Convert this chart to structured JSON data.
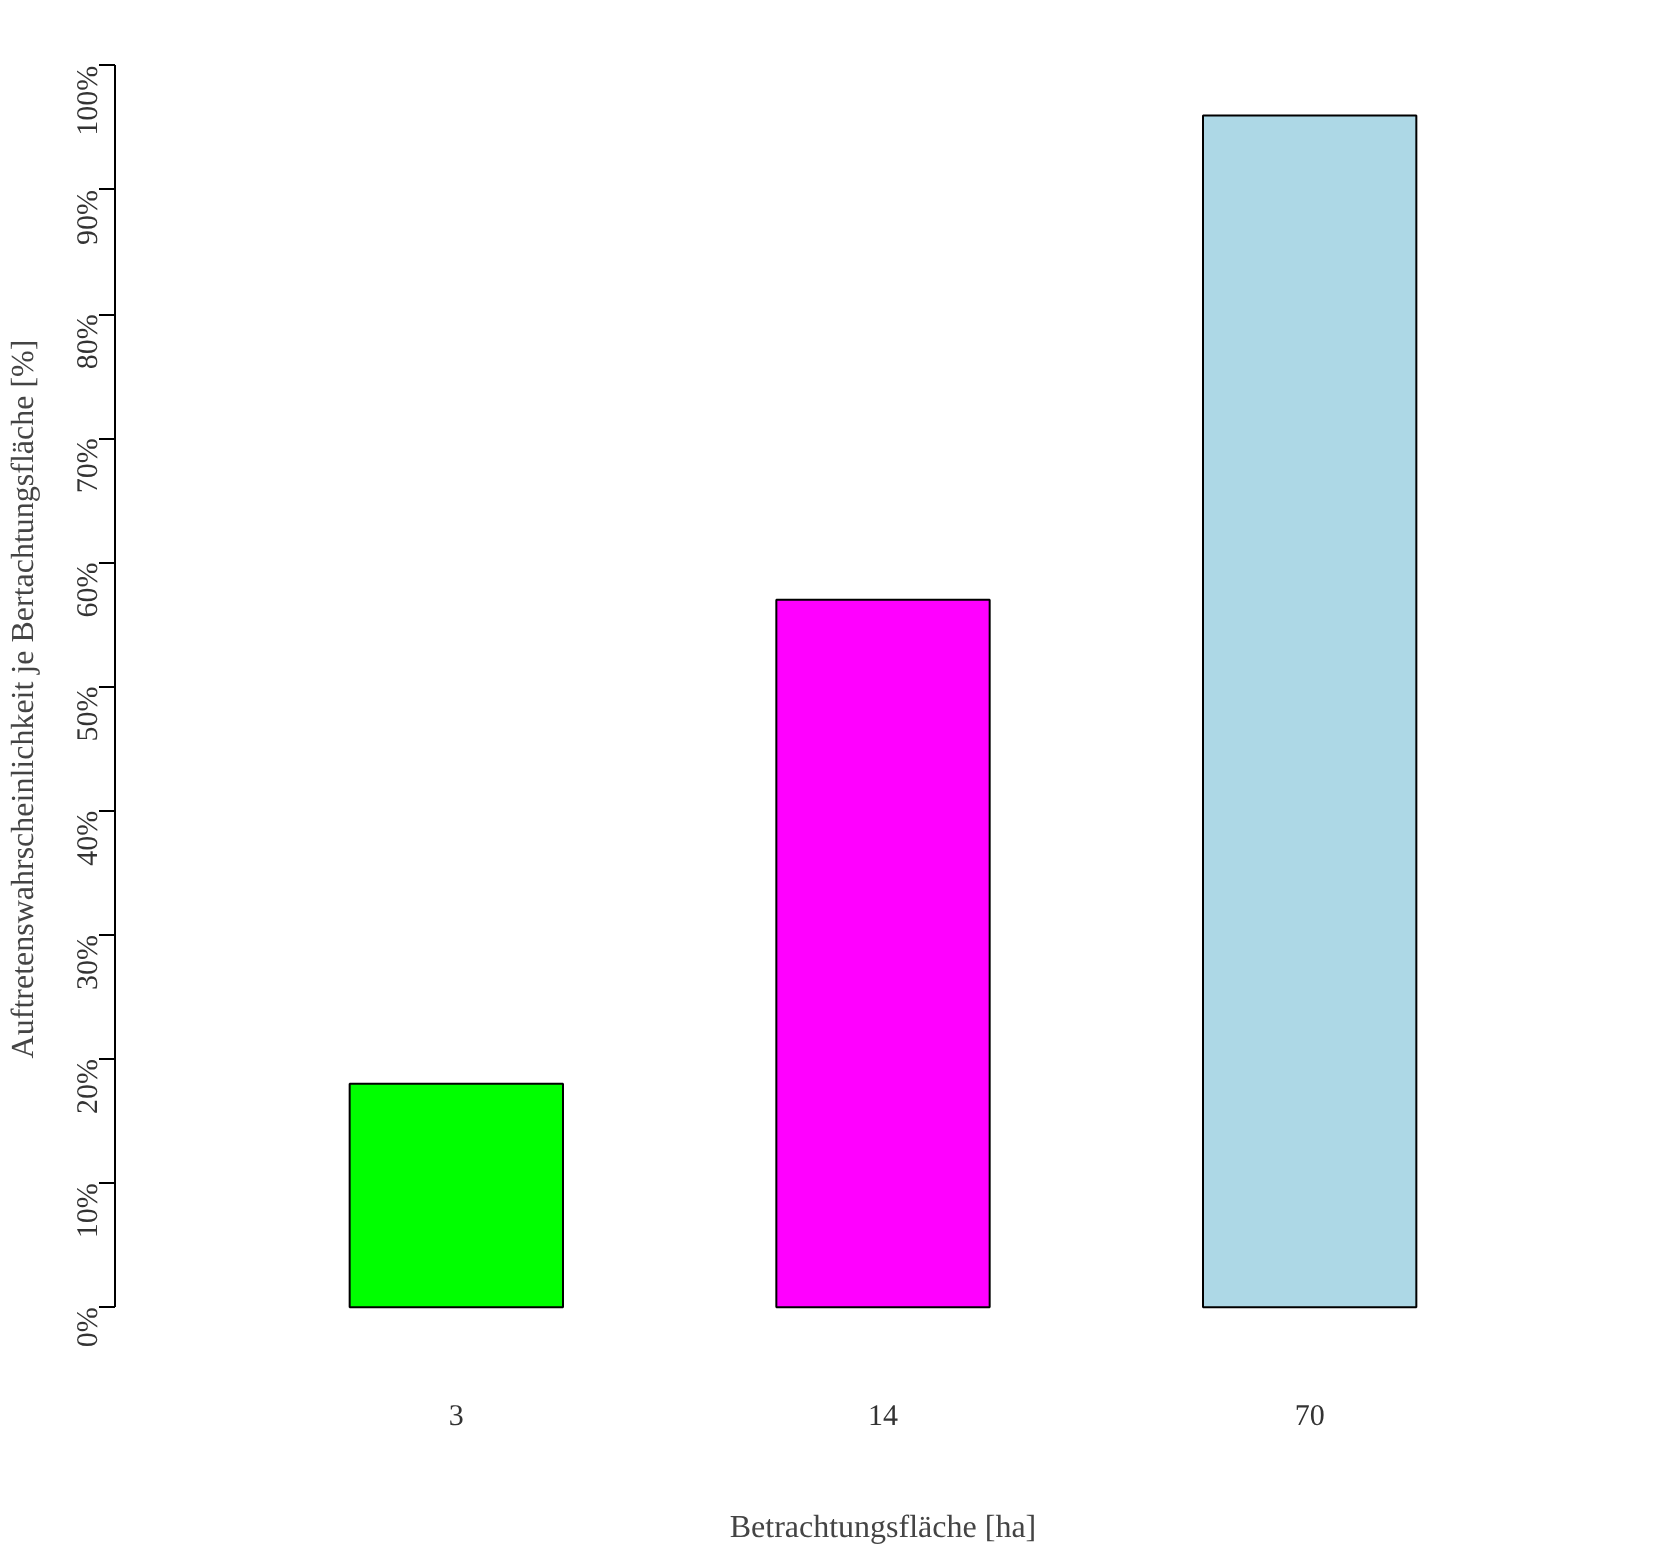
{
  "chart_data": {
    "type": "bar",
    "xlabel": "Betrachtungsfläche [ha]",
    "ylabel": "Auftretenswahrscheinlichkeit je Bertachtungsfläche [%]",
    "categories": [
      "3",
      "14",
      "70"
    ],
    "values": [
      18,
      57,
      96
    ],
    "colors": [
      "#00ff00",
      "#ff00ff",
      "#add8e6"
    ],
    "ylim": [
      0,
      100
    ],
    "yticks": [
      {
        "value": 0,
        "label": "0%"
      },
      {
        "value": 10,
        "label": "10%"
      },
      {
        "value": 20,
        "label": "20%"
      },
      {
        "value": 30,
        "label": "30%"
      },
      {
        "value": 40,
        "label": "40%"
      },
      {
        "value": 50,
        "label": "50%"
      },
      {
        "value": 60,
        "label": "60%"
      },
      {
        "value": 70,
        "label": "70%"
      },
      {
        "value": 80,
        "label": "80%"
      },
      {
        "value": 90,
        "label": "90%"
      },
      {
        "value": 100,
        "label": "100%"
      }
    ],
    "grid": false
  }
}
